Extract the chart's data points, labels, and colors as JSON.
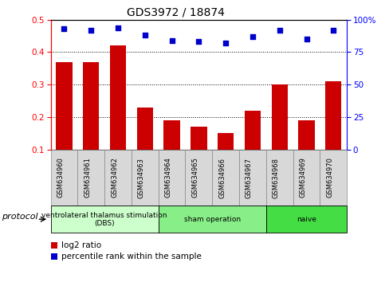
{
  "title": "GDS3972 / 18874",
  "samples": [
    "GSM634960",
    "GSM634961",
    "GSM634962",
    "GSM634963",
    "GSM634964",
    "GSM634965",
    "GSM634966",
    "GSM634967",
    "GSM634968",
    "GSM634969",
    "GSM634970"
  ],
  "log2_ratio": [
    0.37,
    0.37,
    0.42,
    0.23,
    0.19,
    0.17,
    0.15,
    0.22,
    0.3,
    0.19,
    0.31
  ],
  "percentile_rank": [
    93,
    92,
    94,
    88,
    84,
    83,
    82,
    87,
    92,
    85,
    92
  ],
  "groups": [
    {
      "label": "ventrolateral thalamus stimulation\n(DBS)",
      "start": 0,
      "end": 3,
      "color": "#ccffcc"
    },
    {
      "label": "sham operation",
      "start": 4,
      "end": 7,
      "color": "#88ee88"
    },
    {
      "label": "naive",
      "start": 8,
      "end": 10,
      "color": "#44dd44"
    }
  ],
  "left_ylim": [
    0.1,
    0.5
  ],
  "left_yticks": [
    0.1,
    0.2,
    0.3,
    0.4,
    0.5
  ],
  "right_ylim": [
    0,
    100
  ],
  "right_yticks": [
    0,
    25,
    50,
    75,
    100
  ],
  "bar_color": "#cc0000",
  "scatter_color": "#0000cc",
  "bar_width": 0.6,
  "legend_bar_label": "log2 ratio",
  "legend_scatter_label": "percentile rank within the sample",
  "protocol_label": "protocol"
}
